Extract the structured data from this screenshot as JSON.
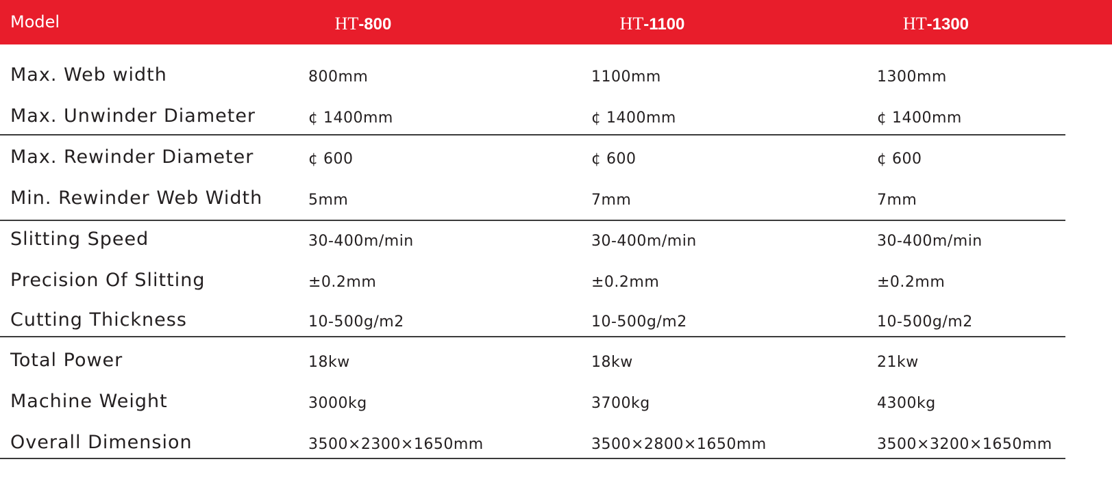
{
  "header": {
    "label": "Model",
    "models": [
      {
        "prefix": "HT",
        "number": "-800"
      },
      {
        "prefix": "HT",
        "number": "-1100"
      },
      {
        "prefix": "HT",
        "number": "-1300"
      }
    ]
  },
  "colors": {
    "header_bg": "#e81d2b",
    "header_text": "#ffffff",
    "text": "#231f20"
  },
  "rows": [
    {
      "label": "Max.  Web width",
      "values": [
        "800mm",
        "1100mm",
        "1300mm"
      ]
    },
    {
      "label": "Max. Unwinder  Diameter",
      "values": [
        "¢ 1400mm",
        "¢ 1400mm",
        "¢ 1400mm"
      ]
    },
    {
      "label": "Max. Rewinder Diameter",
      "values": [
        "¢ 600",
        "¢ 600",
        "¢ 600"
      ]
    },
    {
      "label": "Min. Rewinder Web Width",
      "values": [
        "5mm",
        "7mm",
        "7mm"
      ]
    },
    {
      "label": "Slitting Speed",
      "values": [
        "30-400m/min",
        "30-400m/min",
        "30-400m/min"
      ]
    },
    {
      "label": "Precision Of Slitting",
      "values": [
        "±0.2mm",
        "±0.2mm",
        "±0.2mm"
      ]
    },
    {
      "label": "Cutting Thickness",
      "values": [
        "10-500g/m2",
        "10-500g/m2",
        "10-500g/m2"
      ]
    },
    {
      "label": "Total Power",
      "values": [
        "18kw",
        "18kw",
        "21kw"
      ]
    },
    {
      "label": "Machine Weight",
      "values": [
        "3000kg",
        "3700kg",
        "4300kg"
      ]
    },
    {
      "label": "Overall Dimension",
      "values": [
        "3500×2300×1650mm",
        "3500×2800×1650mm",
        "3500×3200×1650mm"
      ]
    }
  ]
}
